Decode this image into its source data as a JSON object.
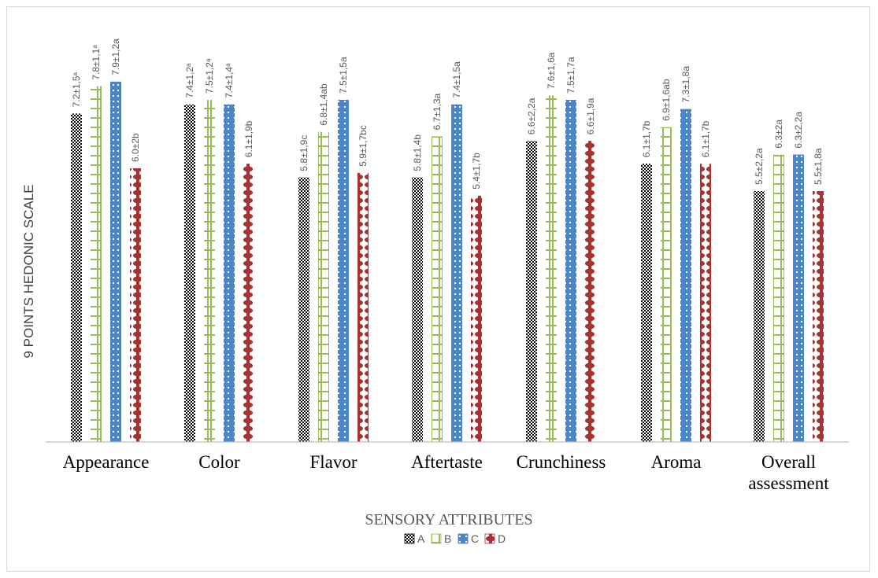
{
  "chart_data": {
    "type": "bar",
    "ylabel": "9 POINTS HEDONIC SCALE",
    "xlabel": "SENSORY ATTRIBUTES",
    "ylim": [
      0,
      9
    ],
    "grid": false,
    "legend_position": "bottom-center",
    "categories": [
      "Appearance",
      "Color",
      "Flavor",
      "Aftertaste",
      "Crunchiness",
      "Aroma",
      "Overall assessment"
    ],
    "series": [
      {
        "name": "A",
        "color": "#000000",
        "pattern": "checker",
        "values": [
          7.2,
          7.4,
          5.8,
          5.8,
          6.6,
          6.1,
          5.5
        ],
        "labels": [
          "7.2±1,5ᵃ",
          "7.4±1,2ᵃ",
          "5.8±1,9c",
          "5.8±1,4b",
          "6.6±2,2a",
          "6.1±1,7b",
          "5.5±2,2a"
        ]
      },
      {
        "name": "B",
        "color": "#9bbb59",
        "pattern": "h-bars",
        "values": [
          7.8,
          7.5,
          6.8,
          6.7,
          7.6,
          6.9,
          6.3
        ],
        "labels": [
          "7.8±1,1ᵃ",
          "7.5±1,2ᵃ",
          "6.8±1,4ab",
          "6.7±1,3a",
          "7.6±1,6a",
          "6.9±1,6ab",
          "6.3±2a"
        ]
      },
      {
        "name": "C",
        "color": "#4a86c8",
        "pattern": "dots",
        "values": [
          7.9,
          7.4,
          7.5,
          7.4,
          7.5,
          7.3,
          6.3
        ],
        "labels": [
          "7.9±1,2a",
          "7.4±1,4ᵃ",
          "7.5±1,5a",
          "7.4±1,5a",
          "7.5±1,7a",
          "7.3±1,8a",
          "6.3±2,2a"
        ]
      },
      {
        "name": "D",
        "color": "#a83232",
        "pattern": "beads",
        "values": [
          6.0,
          6.1,
          5.9,
          5.4,
          6.6,
          6.1,
          5.5
        ],
        "labels": [
          "6.0±2b",
          "6.1±1,9b",
          "5.9±1,7bc",
          "5.4±1,7b",
          "6.6±1,9a",
          "6.1±1,7b",
          "5.5±1,8a"
        ]
      }
    ]
  }
}
